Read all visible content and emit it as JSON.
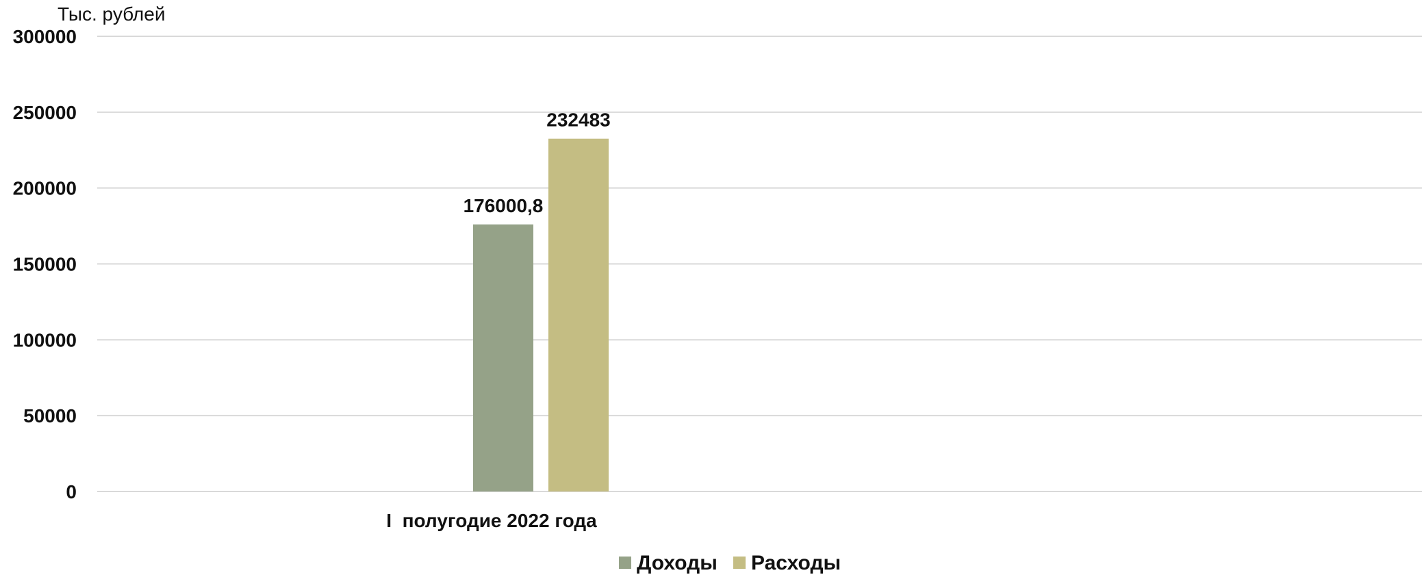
{
  "chart_data": {
    "type": "bar",
    "title": "",
    "xlabel": "",
    "ylabel": "Тыс. рублей",
    "ylim": [
      0,
      300000
    ],
    "yticks": [
      "0",
      "50000",
      "100000",
      "150000",
      "200000",
      "250000",
      "300000"
    ],
    "grid": true,
    "legend_position": "bottom",
    "categories": [
      "I  полугодие 2022 года"
    ],
    "series": [
      {
        "name": "Доходы",
        "color": "#95a288",
        "values": [
          176000.8
        ],
        "labels": [
          "176000,8"
        ]
      },
      {
        "name": "Расходы",
        "color": "#c4bd83",
        "values": [
          232483
        ],
        "labels": [
          "232483"
        ]
      }
    ]
  }
}
